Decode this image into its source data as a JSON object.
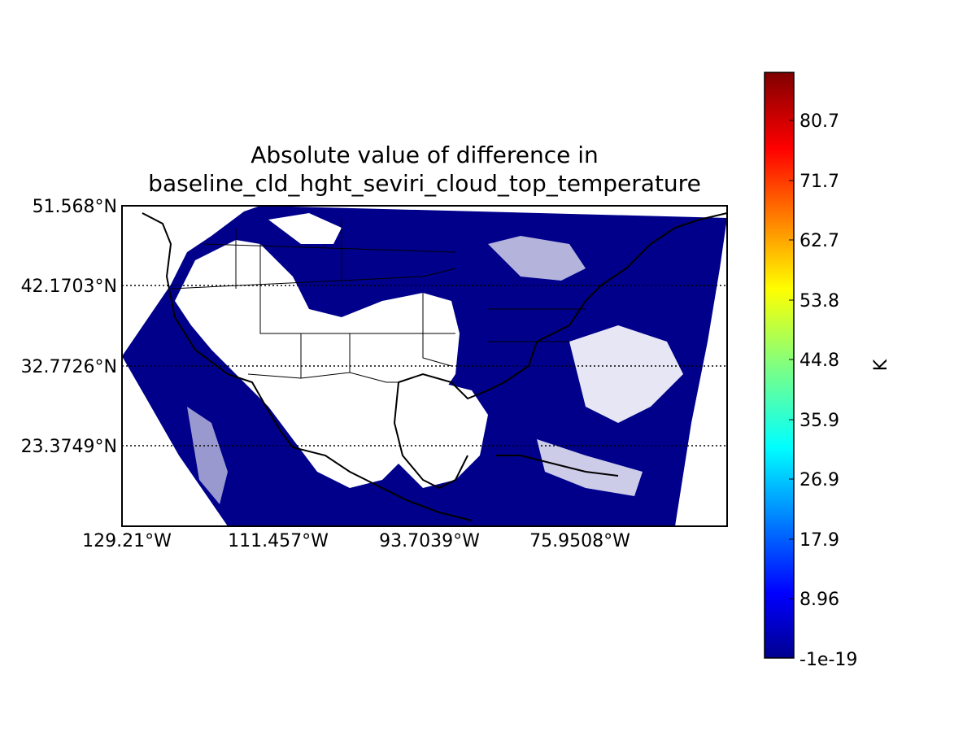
{
  "title": {
    "line1": "Absolute value of difference in",
    "line2": "baseline_cld_hght_seviri_cloud_top_temperature"
  },
  "map": {
    "lat_labels": [
      "51.568°N",
      "42.1703°N",
      "32.7726°N",
      "23.3749°N"
    ],
    "lon_labels": [
      "129.21°W",
      "111.457°W",
      "93.7039°W",
      "75.9508°W"
    ],
    "data_color": "#00008b",
    "land_color": "#ffffff",
    "outline_color": "#000000"
  },
  "colorbar": {
    "label": "K",
    "tick_labels": [
      "80.7",
      "71.7",
      "62.7",
      "53.8",
      "44.8",
      "35.9",
      "26.9",
      "17.9",
      "8.96",
      "-1e-19"
    ],
    "colormap": "jet",
    "colors": [
      "#00008f",
      "#0000ff",
      "#0080ff",
      "#00ffff",
      "#80ff80",
      "#ffff00",
      "#ff8000",
      "#ff0000",
      "#800000"
    ]
  }
}
